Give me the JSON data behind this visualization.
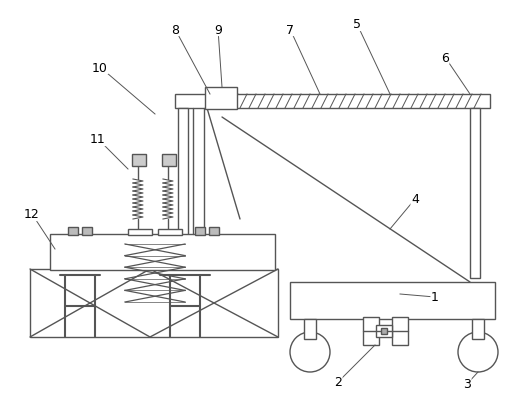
{
  "bg_color": "#ffffff",
  "lc": "#555555",
  "lw": 1.0,
  "fig_w": 5.07,
  "fig_h": 4.1,
  "dpi": 100
}
